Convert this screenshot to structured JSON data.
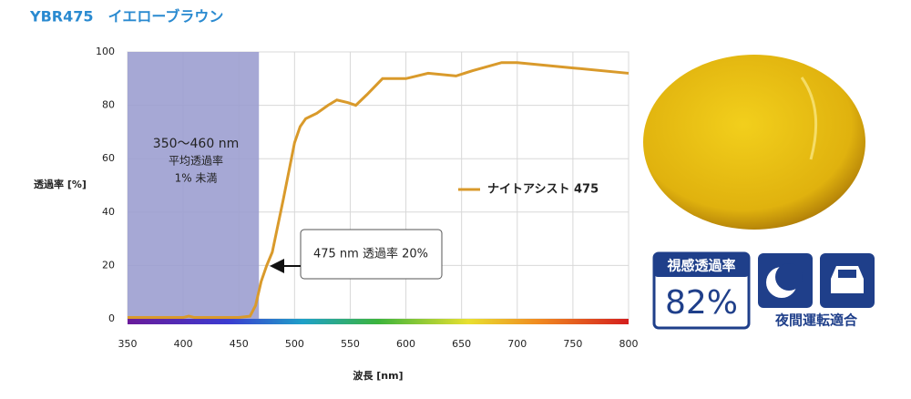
{
  "header": {
    "title": "YBR475　イエローブラウン"
  },
  "chart_data": {
    "type": "line",
    "x_label": "波長 [nm]",
    "y_label": "透過率 [%]",
    "xlim": [
      350,
      800
    ],
    "ylim": [
      0,
      100
    ],
    "xticks": [
      350,
      400,
      450,
      500,
      550,
      600,
      650,
      700,
      750,
      800
    ],
    "yticks": [
      0,
      20,
      40,
      60,
      80,
      100
    ],
    "grid": true,
    "shaded_range": [
      350,
      468
    ],
    "shaded_labels": [
      "350～460 nm",
      "平均透過率",
      "1% 未満"
    ],
    "annotation": "475 nm 透過率 20%",
    "x": [
      350,
      400,
      405,
      410,
      450,
      460,
      465,
      470,
      475,
      480,
      490,
      500,
      505,
      510,
      520,
      530,
      538,
      548,
      555,
      565,
      579,
      600,
      620,
      645,
      660,
      686,
      700,
      750,
      800
    ],
    "series": [
      {
        "name": "ナイトアシスト 475",
        "color": "#d99a2b",
        "values": [
          0.5,
          0.5,
          1,
          0.5,
          0.5,
          1,
          5,
          14,
          20,
          25,
          45,
          66,
          72,
          75,
          77,
          80,
          82,
          81,
          80,
          84,
          90,
          90,
          92,
          91,
          93,
          96,
          96,
          94,
          92
        ]
      }
    ]
  },
  "badges": {
    "visibility_label": "視感透過率",
    "visibility_value": "82%",
    "night_label": "夜間運転適合"
  }
}
